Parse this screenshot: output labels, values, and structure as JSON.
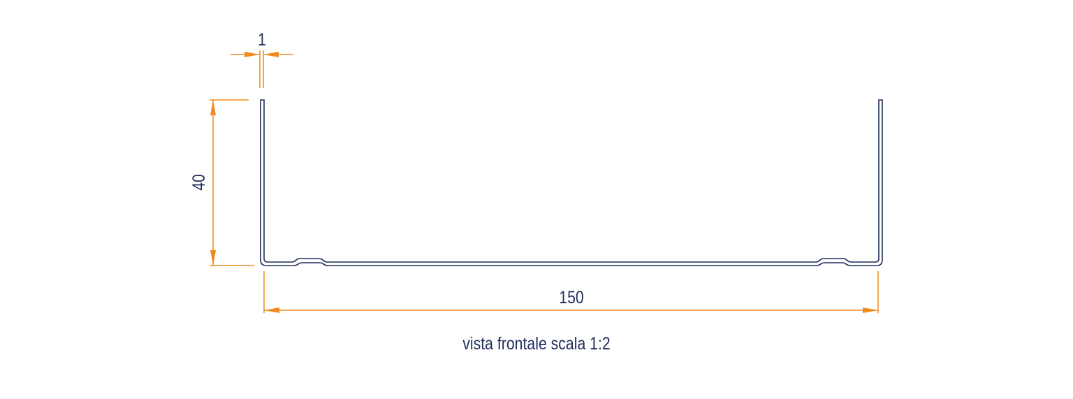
{
  "dimensions": {
    "thickness": "1",
    "height": "40",
    "width": "150"
  },
  "caption": "vista frontale scala 1:2",
  "colors": {
    "profile": "#1f2d5c",
    "dimension_lines": "#f08a1e",
    "text": "#1f2d5c"
  }
}
